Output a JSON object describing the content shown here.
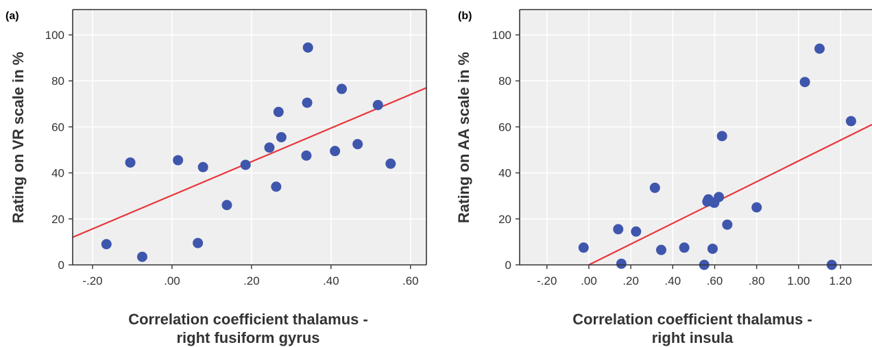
{
  "chart_data": [
    {
      "type": "scatter",
      "panel_label": "(a)",
      "title": "",
      "xlabel": [
        "Correlation coefficient thalamus -",
        "right fusiform gyrus"
      ],
      "ylabel": "Rating on VR scale in %",
      "xlim": [
        -0.25,
        0.64
      ],
      "ylim": [
        0,
        111
      ],
      "xticks": [
        -0.2,
        0.0,
        0.2,
        0.4,
        0.6
      ],
      "xtick_labels": [
        "-.20",
        ".00",
        ".20",
        ".40",
        ".60"
      ],
      "yticks": [
        0,
        20,
        40,
        60,
        80,
        100
      ],
      "ytick_labels": [
        "0",
        "20",
        "40",
        "60",
        "80",
        "100"
      ],
      "grid": true,
      "marker_color": "#3f56ad",
      "line_color": "#e8353b",
      "background_color": "#efefef",
      "points": [
        {
          "x": -0.165,
          "y": 9
        },
        {
          "x": -0.105,
          "y": 44.5
        },
        {
          "x": -0.075,
          "y": 3.5
        },
        {
          "x": 0.015,
          "y": 45.5
        },
        {
          "x": 0.065,
          "y": 9.5
        },
        {
          "x": 0.078,
          "y": 42.5
        },
        {
          "x": 0.138,
          "y": 26
        },
        {
          "x": 0.185,
          "y": 43.5
        },
        {
          "x": 0.245,
          "y": 51
        },
        {
          "x": 0.262,
          "y": 34
        },
        {
          "x": 0.268,
          "y": 66.5
        },
        {
          "x": 0.275,
          "y": 55.5
        },
        {
          "x": 0.338,
          "y": 47.5
        },
        {
          "x": 0.34,
          "y": 70.5
        },
        {
          "x": 0.342,
          "y": 94.5
        },
        {
          "x": 0.41,
          "y": 49.5
        },
        {
          "x": 0.427,
          "y": 76.5
        },
        {
          "x": 0.467,
          "y": 52.5
        },
        {
          "x": 0.518,
          "y": 69.5
        },
        {
          "x": 0.55,
          "y": 44
        }
      ],
      "fit_line": [
        {
          "x": -0.25,
          "y": 12
        },
        {
          "x": 0.64,
          "y": 77
        }
      ]
    },
    {
      "type": "scatter",
      "panel_label": "(b)",
      "title": "",
      "xlabel": [
        "Correlation coefficient thalamus -",
        "right insula"
      ],
      "ylabel": "Rating on AA scale in %",
      "xlim": [
        -0.33,
        1.35
      ],
      "ylim": [
        0,
        111
      ],
      "xticks": [
        -0.2,
        0.0,
        0.2,
        0.4,
        0.6,
        0.8,
        1.0,
        1.2
      ],
      "xtick_labels": [
        "-.20",
        ".00",
        ".20",
        ".40",
        ".60",
        ".80",
        "1.00",
        "1.20"
      ],
      "yticks": [
        0,
        20,
        40,
        60,
        80,
        100
      ],
      "ytick_labels": [
        "0",
        "20",
        "40",
        "60",
        "80",
        "100"
      ],
      "grid": true,
      "marker_color": "#3f56ad",
      "line_color": "#e8353b",
      "background_color": "#efefef",
      "points": [
        {
          "x": -0.025,
          "y": 7.5
        },
        {
          "x": 0.14,
          "y": 15.5
        },
        {
          "x": 0.155,
          "y": 0.5
        },
        {
          "x": 0.225,
          "y": 14.5
        },
        {
          "x": 0.315,
          "y": 33.5
        },
        {
          "x": 0.345,
          "y": 6.5
        },
        {
          "x": 0.455,
          "y": 7.5
        },
        {
          "x": 0.55,
          "y": 0
        },
        {
          "x": 0.565,
          "y": 27.5
        },
        {
          "x": 0.57,
          "y": 28.5
        },
        {
          "x": 0.59,
          "y": 7
        },
        {
          "x": 0.598,
          "y": 27
        },
        {
          "x": 0.62,
          "y": 29.5
        },
        {
          "x": 0.635,
          "y": 56
        },
        {
          "x": 0.66,
          "y": 17.5
        },
        {
          "x": 0.8,
          "y": 25
        },
        {
          "x": 1.03,
          "y": 79.5
        },
        {
          "x": 1.1,
          "y": 94
        },
        {
          "x": 1.158,
          "y": 0
        },
        {
          "x": 1.25,
          "y": 62.5
        }
      ],
      "fit_line": [
        {
          "x": 0.0,
          "y": 0
        },
        {
          "x": 1.35,
          "y": 61
        }
      ]
    }
  ]
}
